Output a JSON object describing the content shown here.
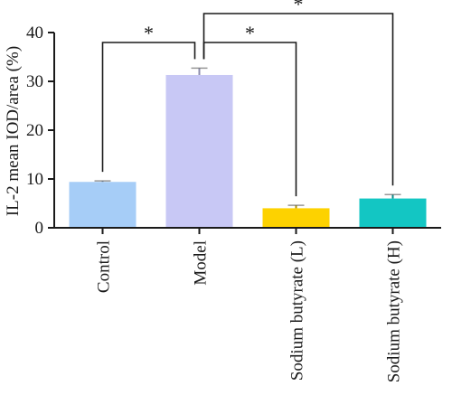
{
  "chart_data": {
    "type": "bar",
    "categories": [
      "Control",
      "Model",
      "Sodium butyrate (L)",
      "Sodium butyrate (H)"
    ],
    "values": [
      9.4,
      31.3,
      4.0,
      6.0
    ],
    "errors": [
      0.2,
      1.4,
      0.6,
      0.8
    ],
    "colors": [
      "#a6cdf7",
      "#c8c8f5",
      "#fdd200",
      "#13c6c3"
    ],
    "title": "",
    "xlabel": "",
    "ylabel": "IL-2 mean IOD/area (%)",
    "ylim": [
      0,
      40
    ],
    "yticks": [
      0,
      10,
      20,
      30,
      40
    ],
    "grid": false,
    "significance": [
      {
        "from": "Model",
        "to": "Control",
        "label": "*"
      },
      {
        "from": "Model",
        "to": "Sodium butyrate (L)",
        "label": "*"
      },
      {
        "from": "Model",
        "to": "Sodium butyrate (H)",
        "label": "*"
      }
    ]
  }
}
